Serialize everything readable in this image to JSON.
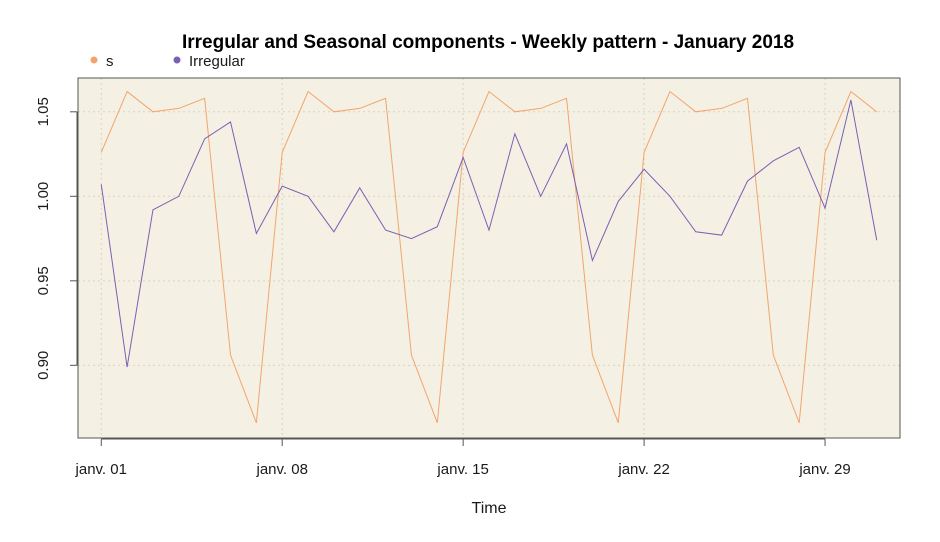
{
  "chart_data": {
    "type": "line",
    "title": "Irregular and Seasonal components - Weekly pattern - January 2018",
    "xlabel": "Time",
    "ylabel": "",
    "x": [
      1,
      2,
      3,
      4,
      5,
      6,
      7,
      8,
      9,
      10,
      11,
      12,
      13,
      14,
      15,
      16,
      17,
      18,
      19,
      20,
      21,
      22,
      23,
      24,
      25,
      26,
      27,
      28,
      29,
      30,
      31
    ],
    "x_ticks": [
      1,
      8,
      15,
      22,
      29
    ],
    "x_tick_labels": [
      "janv. 01",
      "janv. 08",
      "janv. 15",
      "janv. 22",
      "janv. 29"
    ],
    "xlim": [
      0.1,
      31.9
    ],
    "ylim": [
      0.857,
      1.07
    ],
    "y_ticks": [
      0.9,
      0.95,
      1.0,
      1.05
    ],
    "y_tick_labels": [
      "0.90",
      "0.95",
      "1.00",
      "1.05"
    ],
    "grid": true,
    "legend_position": "top-left",
    "background_color": "#f4f1e4",
    "series": [
      {
        "name": "s",
        "color": "#f4a36c",
        "values": [
          1.026,
          1.062,
          1.05,
          1.052,
          1.058,
          0.906,
          0.866,
          1.026,
          1.062,
          1.05,
          1.052,
          1.058,
          0.906,
          0.866,
          1.026,
          1.062,
          1.05,
          1.052,
          1.058,
          0.906,
          0.866,
          1.026,
          1.062,
          1.05,
          1.052,
          1.058,
          0.906,
          0.866,
          1.026,
          1.062,
          1.05
        ]
      },
      {
        "name": "Irregular",
        "color": "#7b5fb4",
        "values": [
          1.007,
          0.899,
          0.992,
          1.0,
          1.034,
          1.044,
          0.978,
          1.006,
          1.0,
          0.979,
          1.005,
          0.98,
          0.975,
          0.982,
          1.023,
          0.98,
          1.037,
          1.0,
          1.031,
          0.962,
          0.997,
          1.016,
          1.0,
          0.979,
          0.977,
          1.009,
          1.021,
          1.029,
          0.993,
          1.057,
          0.974
        ]
      }
    ]
  }
}
